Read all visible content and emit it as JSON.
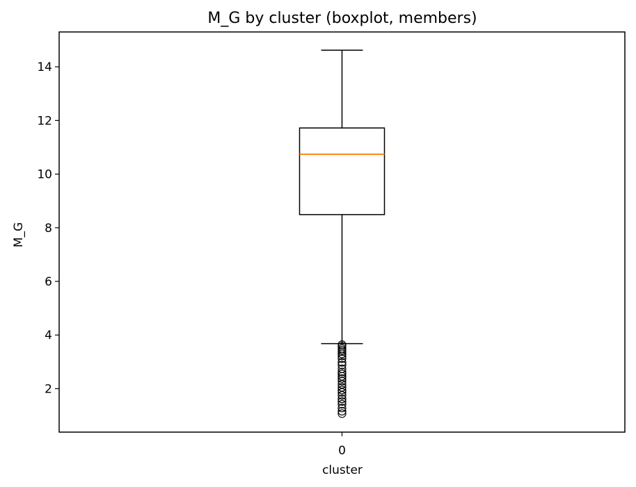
{
  "chart_data": {
    "type": "boxplot",
    "title": "M_G by cluster (boxplot, members)",
    "xlabel": "cluster",
    "ylabel": "M_G",
    "ylim": [
      0.38,
      15.3
    ],
    "yticks": [
      2,
      4,
      6,
      8,
      10,
      12,
      14
    ],
    "categories": [
      "0"
    ],
    "boxes": [
      {
        "category": "0",
        "whisker_low": 3.68,
        "q1": 8.49,
        "median": 10.74,
        "q3": 11.72,
        "whisker_high": 14.62,
        "outliers": [
          3.64,
          3.58,
          3.5,
          3.44,
          3.38,
          3.3,
          3.22,
          3.12,
          2.98,
          2.88,
          2.74,
          2.62,
          2.55,
          2.46,
          2.38,
          2.28,
          2.16,
          2.05,
          1.95,
          1.86,
          1.75,
          1.62,
          1.52,
          1.42,
          1.28,
          1.16,
          1.07
        ]
      }
    ],
    "colors": {
      "box": "#000000",
      "median": "#ff7f0e",
      "outlier": "#000000"
    },
    "grid": false,
    "legend": "none"
  }
}
